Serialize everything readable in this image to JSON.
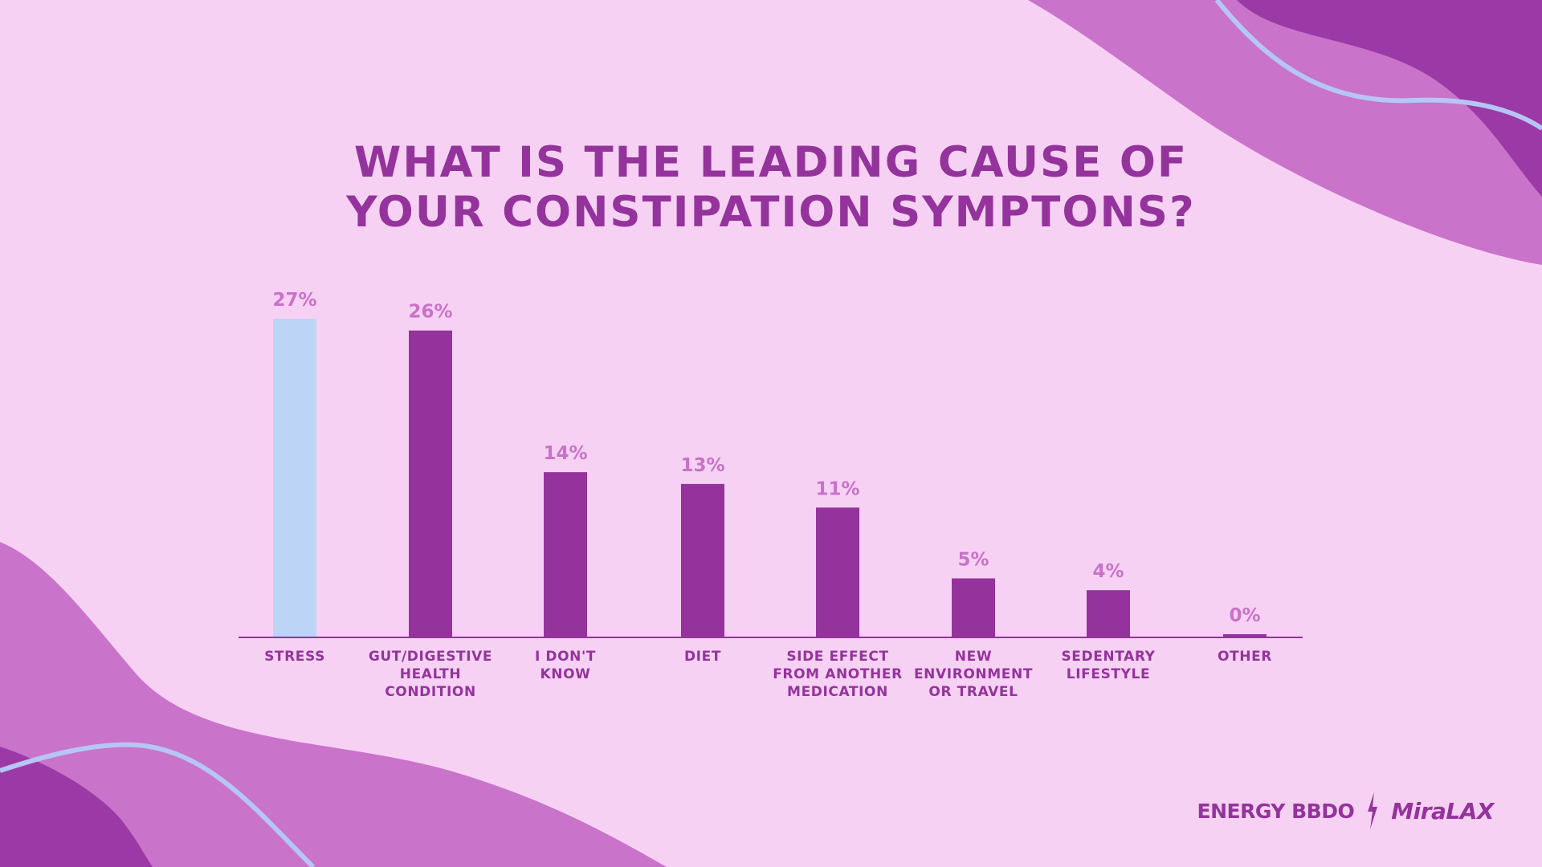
{
  "colors": {
    "background": "#f7d1f4",
    "bar": "#94339b",
    "bar_highlight": "#bcd5f6",
    "value_label": "#c872c9",
    "text": "#94339b",
    "decor_light": "#c973cb",
    "decor_dark": "#9b3aa6",
    "decor_line": "#b6c6f4"
  },
  "title_lines": [
    "WHAT IS THE LEADING CAUSE OF",
    "YOUR CONSTIPATION SYMPTONS?"
  ],
  "chart_data": {
    "type": "bar",
    "title": "WHAT IS THE LEADING CAUSE OF YOUR CONSTIPATION SYMPTONS?",
    "categories": [
      [
        "STRESS"
      ],
      [
        "GUT/DIGESTIVE",
        "HEALTH",
        "CONDITION"
      ],
      [
        "I DON'T",
        "KNOW"
      ],
      [
        "DIET"
      ],
      [
        "SIDE EFFECT",
        "FROM ANOTHER",
        "MEDICATION"
      ],
      [
        "NEW",
        "ENVIRONMENT",
        "OR TRAVEL"
      ],
      [
        "SEDENTARY",
        "LIFESTYLE"
      ],
      [
        "OTHER"
      ]
    ],
    "values": [
      27,
      26,
      14,
      13,
      11,
      5,
      4,
      0
    ],
    "value_labels": [
      "27%",
      "26%",
      "14%",
      "13%",
      "11%",
      "5%",
      "4%",
      "0%"
    ],
    "highlight_index": 0,
    "unit": "%",
    "ylim": [
      0,
      28
    ],
    "grid": false,
    "legend": "none"
  },
  "branding": {
    "agency": "ENERGY BBDO",
    "separator_icon": "lightning-bolt-icon",
    "product": "MiraLAX"
  }
}
